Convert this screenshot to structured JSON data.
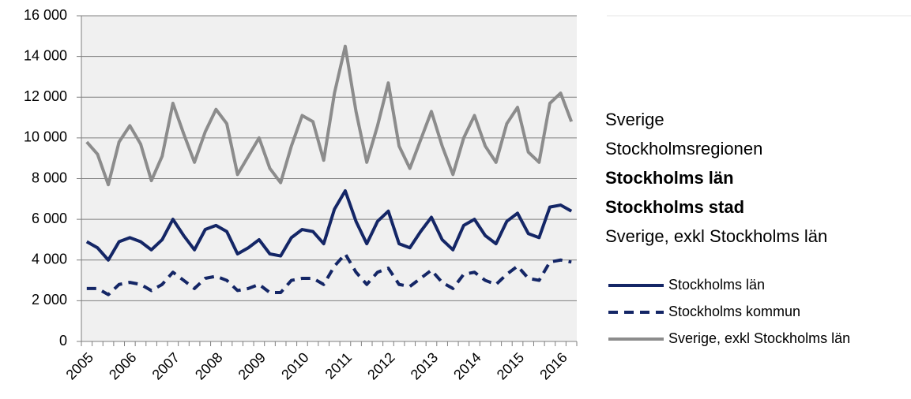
{
  "chart_data": {
    "type": "line",
    "categories": [
      "2005",
      null,
      null,
      null,
      "2006",
      null,
      null,
      null,
      "2007",
      null,
      null,
      null,
      "2008",
      null,
      null,
      null,
      "2009",
      null,
      null,
      null,
      "2010",
      null,
      null,
      null,
      "2011",
      null,
      null,
      null,
      "2012",
      null,
      null,
      null,
      "2013",
      null,
      null,
      null,
      "2014",
      null,
      null,
      null,
      "2015",
      null,
      null,
      null,
      "2016",
      null
    ],
    "series": [
      {
        "name": "Stockholms län",
        "color": "#142666",
        "dash": false,
        "values": [
          4900,
          4600,
          4000,
          4900,
          5100,
          4900,
          4500,
          5000,
          6000,
          5200,
          4500,
          5500,
          5700,
          5400,
          4300,
          4600,
          5000,
          4300,
          4200,
          5100,
          5500,
          5400,
          4800,
          6500,
          7400,
          5900,
          4800,
          5900,
          6400,
          4800,
          4600,
          5400,
          6100,
          5000,
          4500,
          5700,
          6000,
          5200,
          4800,
          5900,
          6300,
          5300,
          5100,
          6600,
          6700,
          6400
        ]
      },
      {
        "name": "Stockholms kommun",
        "color": "#142666",
        "dash": true,
        "values": [
          2600,
          2600,
          2300,
          2800,
          2900,
          2800,
          2500,
          2800,
          3400,
          3000,
          2600,
          3100,
          3200,
          3000,
          2500,
          2600,
          2800,
          2400,
          2400,
          3000,
          3100,
          3100,
          2800,
          3700,
          4300,
          3400,
          2800,
          3400,
          3600,
          2800,
          2700,
          3100,
          3500,
          2900,
          2600,
          3300,
          3400,
          3000,
          2800,
          3300,
          3700,
          3100,
          3000,
          3900,
          4000,
          3900
        ]
      },
      {
        "name": "Sverige, exkl Stockholms län",
        "color": "#8c8c8c",
        "dash": false,
        "values": [
          9800,
          9200,
          7700,
          9800,
          10600,
          9700,
          7900,
          9100,
          11700,
          10200,
          8800,
          10300,
          11400,
          10700,
          8200,
          9100,
          10000,
          8500,
          7800,
          9600,
          11100,
          10800,
          8900,
          12200,
          14500,
          11300,
          8800,
          10600,
          12700,
          9600,
          8500,
          9900,
          11300,
          9600,
          8200,
          10000,
          11100,
          9600,
          8800,
          10700,
          11500,
          9300,
          8800,
          11700,
          12200,
          10800
        ]
      }
    ],
    "ylim": [
      0,
      16000
    ],
    "yticks": [
      0,
      {
        "value": 2000,
        "label": "2 000"
      },
      {
        "value": 4000,
        "label": "4 000"
      },
      {
        "value": 6000,
        "label": "6 000"
      },
      {
        "value": 8000,
        "label": "8 000"
      },
      {
        "value": 10000,
        "label": "10 000"
      },
      {
        "value": 12000,
        "label": "12 000"
      },
      {
        "value": 14000,
        "label": "14 000"
      },
      {
        "value": 16000,
        "label": "16 000"
      }
    ],
    "grid": true,
    "plot_background": "#f0f0f0"
  },
  "options": [
    {
      "label": "Sverige",
      "selected": false
    },
    {
      "label": "Stockholmsregionen",
      "selected": false
    },
    {
      "label": "Stockholms län",
      "selected": true
    },
    {
      "label": "Stockholms stad",
      "selected": true
    },
    {
      "label": "Sverige, exkl Stockholms län",
      "selected": false
    }
  ]
}
